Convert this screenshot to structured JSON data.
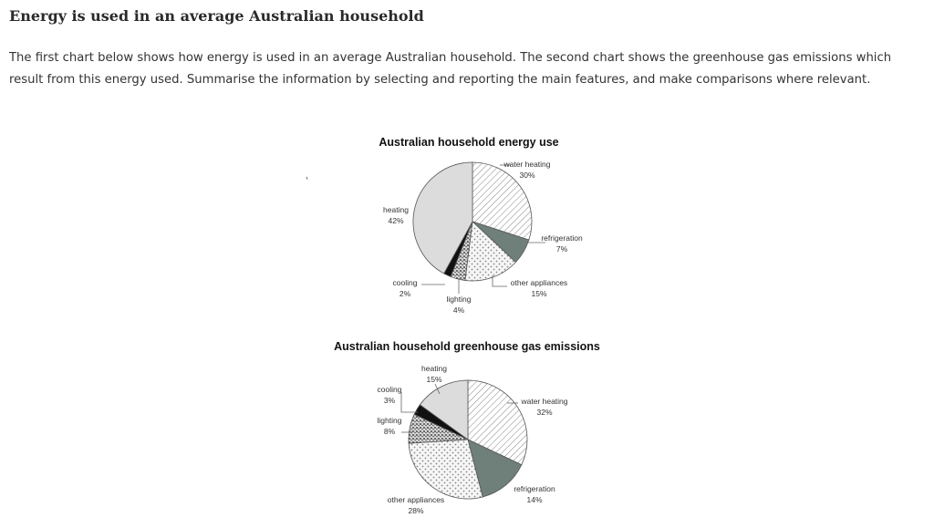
{
  "header": {
    "title": "Energy is used in an average Australian household"
  },
  "prompt_text": "The first chart below shows how energy is used in an average Australian household. The second chart shows the greenhouse gas emissions which result from this energy used. Summarise the information by selecting and reporting the main features, and make comparisons where relevant.",
  "stray_mark": "ʹ",
  "colors": {
    "heating": "#dcdcdc",
    "water_heating": "#ffffff",
    "refrigeration": "#6f7f7a",
    "other_appliances": "#f4f4f4",
    "lighting": "#e8e8e8",
    "cooling": "#111111",
    "outline": "#555555"
  },
  "chart_data": [
    {
      "type": "pie",
      "title": "Australian household energy use",
      "slices": [
        {
          "name": "water heating",
          "label": "30%",
          "value": 30,
          "pattern": "hatch"
        },
        {
          "name": "refrigeration",
          "label": "7%",
          "value": 7,
          "pattern": "solid-dark"
        },
        {
          "name": "other appliances",
          "label": "15%",
          "value": 15,
          "pattern": "dots"
        },
        {
          "name": "lighting",
          "label": "4%",
          "value": 4,
          "pattern": "speckle"
        },
        {
          "name": "cooling",
          "label": "2%",
          "value": 2,
          "pattern": "black"
        },
        {
          "name": "heating",
          "label": "42%",
          "value": 42,
          "pattern": "grey"
        }
      ]
    },
    {
      "type": "pie",
      "title": "Australian household greenhouse gas emissions",
      "slices": [
        {
          "name": "water heating",
          "label": "32%",
          "value": 32,
          "pattern": "hatch"
        },
        {
          "name": "refrigeration",
          "label": "14%",
          "value": 14,
          "pattern": "solid-dark"
        },
        {
          "name": "other appliances",
          "label": "28%",
          "value": 28,
          "pattern": "dots"
        },
        {
          "name": "lighting",
          "label": "8%",
          "value": 8,
          "pattern": "speckle"
        },
        {
          "name": "cooling",
          "label": "3%",
          "value": 3,
          "pattern": "black"
        },
        {
          "name": "heating",
          "label": "15%",
          "value": 15,
          "pattern": "grey"
        }
      ]
    }
  ]
}
